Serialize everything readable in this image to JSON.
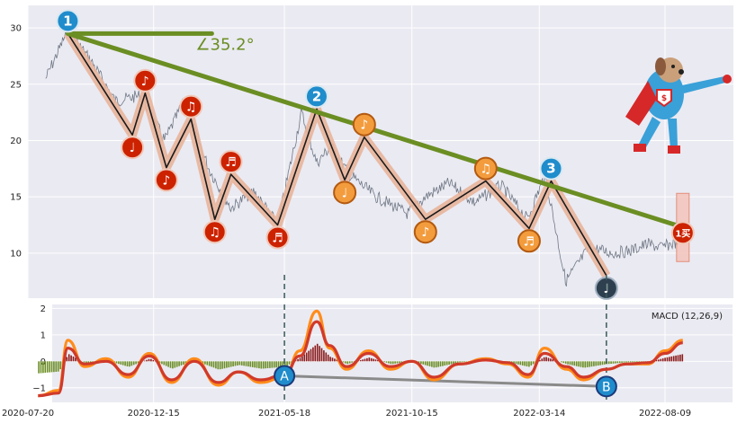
{
  "colors": {
    "panel_bg": "#eaeaf2",
    "grid": "#ffffff",
    "price": "#5a6472",
    "trend_line": "#6b8e23",
    "wave_fill": "#e8b49a",
    "wave_line": "#1a1a1a",
    "marker_red": "#cc2200",
    "marker_orange": "#f39c3d",
    "marker_blue": "#1f8ccc",
    "marker_dark": "#2e3f4f",
    "macd_orange": "#ff8c1a",
    "macd_red": "#d03a2a",
    "hist_pos": "#8b1a1a",
    "hist_neg": "#6b8e23",
    "divergence": "#8a8a8a",
    "vline": "#3a5a5a"
  },
  "chart_data": [
    {
      "type": "line",
      "id": "price",
      "ylim": [
        6,
        32
      ],
      "yticks": [
        "10",
        "15",
        "20",
        "25",
        "30"
      ],
      "x_dates": [
        "2020-08-10",
        "2020-09-05",
        "2020-10-03",
        "2020-10-31",
        "2020-11-30",
        "2020-12-28",
        "2021-01-20",
        "2021-02-18",
        "2021-03-16",
        "2021-04-12",
        "2021-05-10",
        "2021-06-07",
        "2021-06-25",
        "2021-07-12",
        "2021-08-02",
        "2021-09-03",
        "2021-10-10",
        "2021-10-31",
        "2021-11-28",
        "2021-12-28",
        "2022-01-28",
        "2022-02-28",
        "2022-03-21",
        "2022-04-14",
        "2022-05-12",
        "2022-06-08",
        "2022-06-29",
        "2022-07-19",
        "2022-08-05",
        "2022-08-23",
        "2022-08-30"
      ],
      "price_values": [
        25.5,
        29.8,
        27.0,
        23.5,
        24.0,
        20.0,
        23.5,
        17.5,
        14.0,
        15.5,
        12.5,
        22.5,
        18.0,
        19.5,
        17.0,
        15.0,
        13.5,
        15.0,
        16.2,
        14.5,
        16.0,
        13.0,
        17.0,
        7.5,
        10.5,
        10.0,
        10.2,
        10.8,
        10.5,
        11.0,
        12.5
      ],
      "wave_points": [
        {
          "x": "2020-09-05",
          "y": 29.5,
          "label": "1",
          "style": "blue"
        },
        {
          "x": "2020-11-20",
          "y": 20.5,
          "label": "♩",
          "style": "red"
        },
        {
          "x": "2020-12-05",
          "y": 24.2,
          "label": "♪",
          "style": "red"
        },
        {
          "x": "2020-12-30",
          "y": 17.6,
          "label": "♪",
          "style": "red"
        },
        {
          "x": "2021-01-28",
          "y": 21.9,
          "label": "♫",
          "style": "red"
        },
        {
          "x": "2021-02-25",
          "y": 13.0,
          "label": "♫",
          "style": "red"
        },
        {
          "x": "2021-03-16",
          "y": 17.0,
          "label": "♬",
          "style": "red"
        },
        {
          "x": "2021-05-10",
          "y": 12.5,
          "label": "♬",
          "style": "red"
        },
        {
          "x": "2021-06-25",
          "y": 22.8,
          "label": "2",
          "style": "blue"
        },
        {
          "x": "2021-07-28",
          "y": 16.5,
          "label": "♩",
          "style": "orange"
        },
        {
          "x": "2021-08-20",
          "y": 20.3,
          "label": "♪",
          "style": "orange"
        },
        {
          "x": "2021-10-31",
          "y": 13.0,
          "label": "♪",
          "style": "orange"
        },
        {
          "x": "2022-01-10",
          "y": 16.4,
          "label": "♫",
          "style": "orange"
        },
        {
          "x": "2022-03-02",
          "y": 12.2,
          "label": "♬",
          "style": "orange"
        },
        {
          "x": "2022-03-28",
          "y": 16.4,
          "label": "3",
          "style": "blue"
        },
        {
          "x": "2022-06-01",
          "y": 8.0,
          "label": "♩",
          "style": "dark"
        }
      ],
      "trend_line": {
        "x0": "2020-09-05",
        "y0": 29.5,
        "x1": "2022-08-30",
        "y1": 12.3
      },
      "angle_label": "∠35.2°",
      "buy_marker": {
        "x": "2022-08-30",
        "y": 11.8,
        "label": "1买"
      }
    },
    {
      "type": "line",
      "id": "macd",
      "ylim": [
        -1.55,
        2.15
      ],
      "yticks": [
        "−1",
        "0",
        "1",
        "2"
      ],
      "legend": "MACD (12,26,9)",
      "xticks": [
        "2020-07-20",
        "2020-12-15",
        "2021-05-18",
        "2021-10-15",
        "2022-03-14",
        "2022-08-09"
      ],
      "x_dates": [
        "2020-08-01",
        "2020-08-25",
        "2020-09-05",
        "2020-09-25",
        "2020-10-20",
        "2020-11-15",
        "2020-12-10",
        "2021-01-05",
        "2021-02-01",
        "2021-03-01",
        "2021-03-25",
        "2021-04-20",
        "2021-05-18",
        "2021-06-05",
        "2021-06-25",
        "2021-07-10",
        "2021-07-30",
        "2021-08-25",
        "2021-09-20",
        "2021-10-15",
        "2021-11-10",
        "2021-12-10",
        "2022-01-10",
        "2022-02-05",
        "2022-03-01",
        "2022-03-20",
        "2022-04-15",
        "2022-05-05",
        "2022-06-01",
        "2022-06-25",
        "2022-07-20",
        "2022-08-09",
        "2022-08-30"
      ],
      "series": [
        {
          "color": "orange",
          "values": [
            -1.3,
            -1.1,
            0.8,
            -0.2,
            0.1,
            -0.6,
            0.3,
            -0.8,
            0.1,
            -0.9,
            -0.4,
            -0.8,
            -0.6,
            0.4,
            1.9,
            0.5,
            -0.3,
            0.4,
            -0.3,
            0.0,
            -0.7,
            -0.1,
            0.1,
            -0.1,
            -0.6,
            0.5,
            -0.3,
            -0.7,
            -0.3,
            -0.1,
            -0.1,
            0.4,
            0.8
          ]
        },
        {
          "color": "red",
          "values": [
            -1.3,
            -1.2,
            0.5,
            -0.1,
            0.0,
            -0.5,
            0.2,
            -0.7,
            0.0,
            -0.8,
            -0.4,
            -0.7,
            -0.5,
            0.2,
            1.5,
            0.6,
            -0.2,
            0.3,
            -0.2,
            0.0,
            -0.6,
            -0.1,
            0.05,
            -0.05,
            -0.5,
            0.3,
            -0.2,
            -0.6,
            -0.3,
            -0.1,
            -0.05,
            0.3,
            0.7
          ]
        }
      ],
      "divergence": {
        "A": {
          "x": "2021-05-18",
          "y": -0.55,
          "label": "A"
        },
        "B": {
          "x": "2022-06-01",
          "y": -0.95,
          "label": "B"
        }
      }
    }
  ]
}
